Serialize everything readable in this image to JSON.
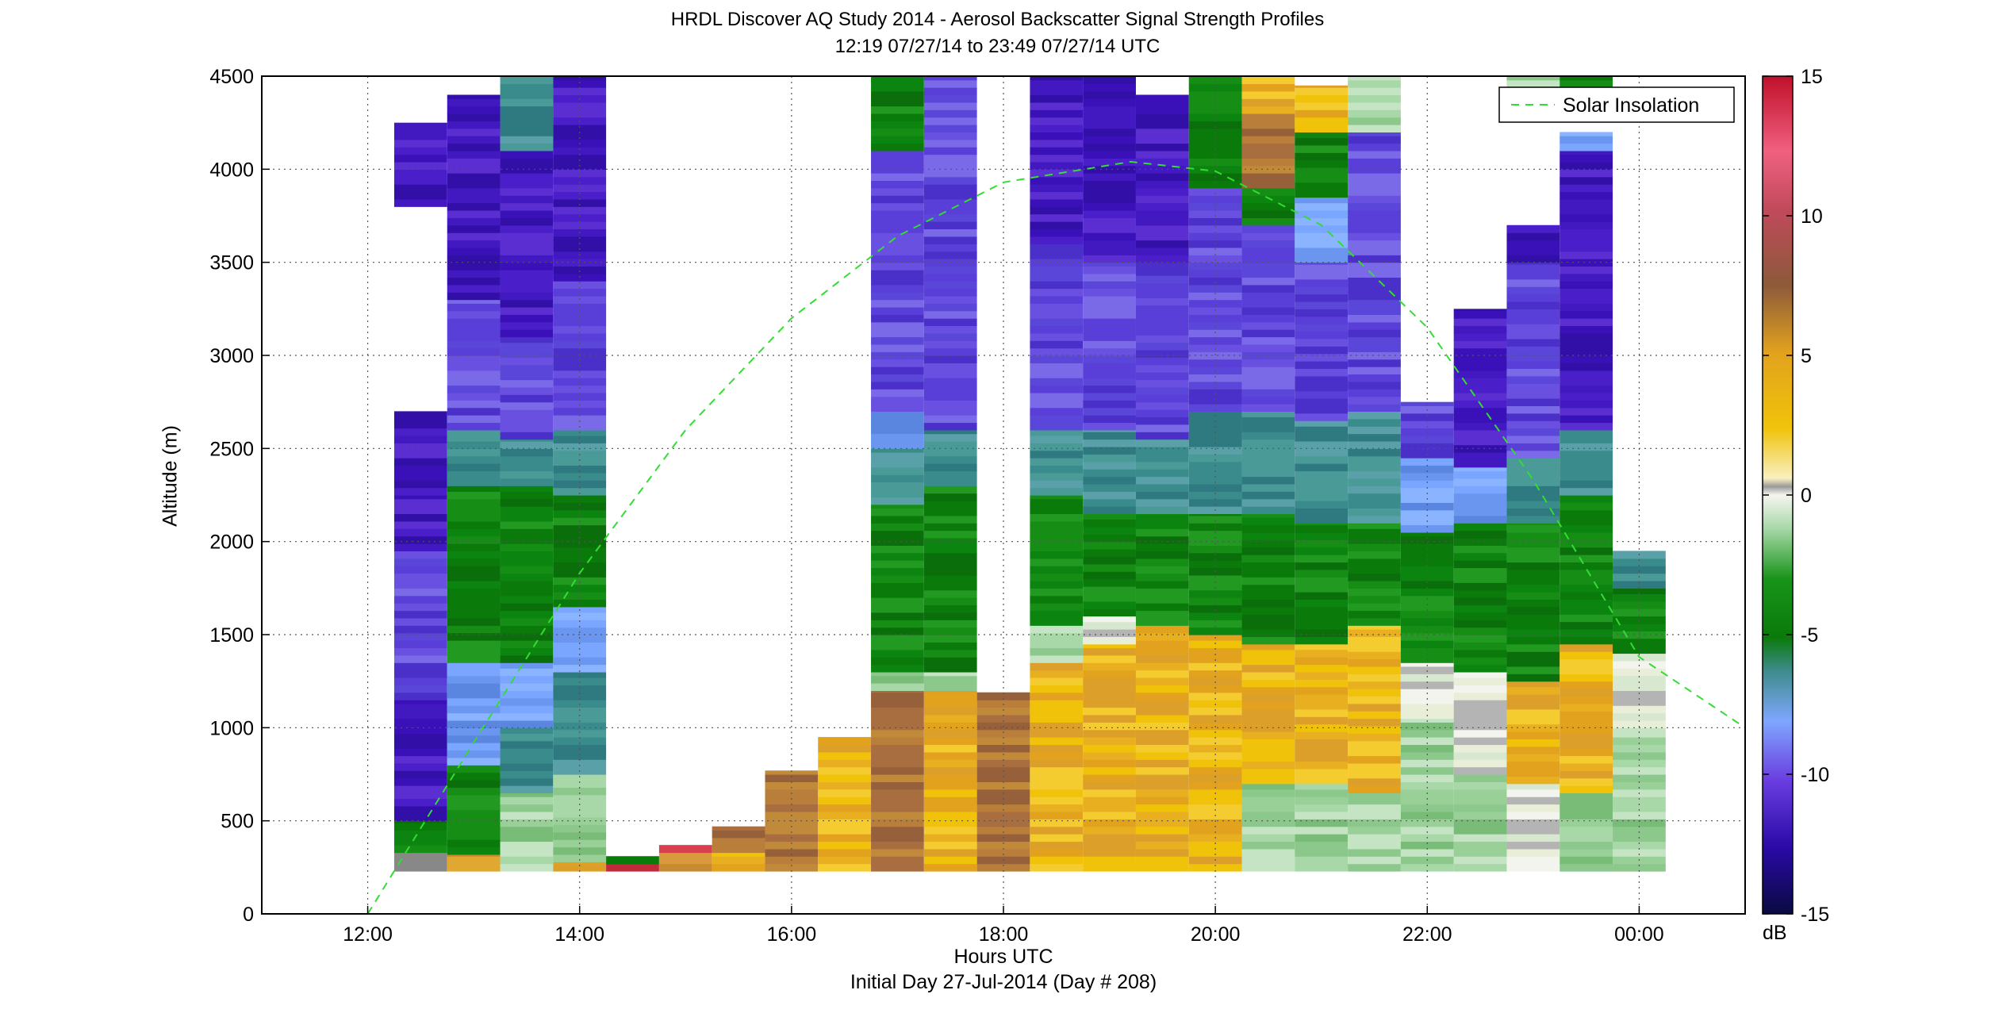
{
  "title": "HRDL Discover AQ Study 2014 - Aerosol Backscatter Signal Strength Profiles",
  "subtitle": "12:19 07/27/14 to 23:49 07/27/14  UTC",
  "chart_data": {
    "type": "heatmap",
    "title": "HRDL Discover AQ Study 2014 - Aerosol Backscatter Signal Strength Profiles",
    "subtitle": "12:19 07/27/14 to 23:49 07/27/14  UTC",
    "xlabel": "Hours UTC",
    "xlabel2": "Initial Day 27-Jul-2014 (Day # 208)",
    "ylabel": "Altitude (m)",
    "x_unit": "hours UTC",
    "xlim": [
      11.0,
      25.0
    ],
    "ylim": [
      0,
      4500
    ],
    "x_ticks": [
      12,
      14,
      16,
      18,
      20,
      22,
      24
    ],
    "x_tick_labels": [
      "12:00",
      "14:00",
      "16:00",
      "18:00",
      "20:00",
      "22:00",
      "00:00"
    ],
    "y_ticks": [
      0,
      500,
      1000,
      1500,
      2000,
      2500,
      3000,
      3500,
      4000,
      4500
    ],
    "y_tick_labels": [
      "0",
      "500",
      "1000",
      "1500",
      "2000",
      "2500",
      "3000",
      "3500",
      "4000",
      "4500"
    ],
    "grid": true,
    "colorbar": {
      "label": "dB",
      "range": [
        -15,
        15
      ],
      "ticks": [
        -15,
        -10,
        -5,
        0,
        5,
        10,
        15
      ],
      "tick_labels": [
        "-15",
        "-10",
        "-5",
        "0",
        "5",
        "10",
        "15"
      ]
    },
    "legend": {
      "position": "top-right",
      "entries": [
        "Solar Insolation"
      ]
    },
    "solar_insolation": {
      "name": "Solar Insolation",
      "color": "#33dd33",
      "style": "dashed",
      "x": [
        12.0,
        13.0,
        14.0,
        15.0,
        16.0,
        17.0,
        18.0,
        19.2,
        20.0,
        21.0,
        22.0,
        23.0,
        24.0,
        25.0
      ],
      "y": [
        0,
        920,
        1830,
        2600,
        3200,
        3640,
        3930,
        4040,
        3990,
        3700,
        3150,
        2330,
        1380,
        1000
      ]
    },
    "profiles": [
      {
        "t": 12.5,
        "top": 4250,
        "segments": [
          [
            230,
            330,
            "mix"
          ],
          [
            330,
            500,
            "green"
          ],
          [
            500,
            650,
            "violet"
          ],
          [
            650,
            1150,
            "violet"
          ],
          [
            1150,
            1950,
            "blueviolet"
          ],
          [
            1950,
            2250,
            "violet"
          ],
          [
            2250,
            2700,
            "violet"
          ],
          [
            3800,
            4250,
            "violet"
          ]
        ]
      },
      {
        "t": 13.0,
        "top": 4400,
        "segments": [
          [
            230,
            320,
            "tan"
          ],
          [
            320,
            800,
            "green"
          ],
          [
            800,
            1350,
            "blue"
          ],
          [
            1350,
            2300,
            "green"
          ],
          [
            2300,
            2600,
            "teal"
          ],
          [
            2600,
            3300,
            "blueviolet"
          ],
          [
            3300,
            4400,
            "violet"
          ]
        ]
      },
      {
        "t": 13.5,
        "top": 4500,
        "segments": [
          [
            230,
            650,
            "lightgreen"
          ],
          [
            650,
            1000,
            "teal"
          ],
          [
            1000,
            1350,
            "blue"
          ],
          [
            1350,
            2300,
            "green"
          ],
          [
            2300,
            2550,
            "teal"
          ],
          [
            2550,
            3100,
            "blueviolet"
          ],
          [
            3100,
            4100,
            "violet"
          ],
          [
            4100,
            4500,
            "teal"
          ]
        ]
      },
      {
        "t": 14.0,
        "top": 4500,
        "segments": [
          [
            230,
            280,
            "gold"
          ],
          [
            280,
            750,
            "lightgreen"
          ],
          [
            750,
            1300,
            "teal"
          ],
          [
            1300,
            1650,
            "blue"
          ],
          [
            1650,
            2250,
            "green"
          ],
          [
            2250,
            2600,
            "teal"
          ],
          [
            2600,
            3400,
            "blueviolet"
          ],
          [
            3400,
            4500,
            "violet"
          ]
        ]
      },
      {
        "t": 14.5,
        "top": 310,
        "segments": [
          [
            230,
            270,
            "red"
          ],
          [
            270,
            310,
            "green"
          ]
        ]
      },
      {
        "t": 15.0,
        "top": 370,
        "segments": [
          [
            230,
            330,
            "tan"
          ],
          [
            330,
            370,
            "red"
          ]
        ]
      },
      {
        "t": 15.5,
        "top": 470,
        "segments": [
          [
            230,
            330,
            "gold"
          ],
          [
            330,
            470,
            "brown"
          ]
        ]
      },
      {
        "t": 16.0,
        "top": 770,
        "segments": [
          [
            230,
            770,
            "brown"
          ]
        ]
      },
      {
        "t": 16.5,
        "top": 950,
        "segments": [
          [
            230,
            950,
            "gold"
          ]
        ]
      },
      {
        "t": 17.0,
        "top": 4500,
        "segments": [
          [
            230,
            1200,
            "brown"
          ],
          [
            1200,
            1300,
            "lightgreen"
          ],
          [
            1300,
            2200,
            "green"
          ],
          [
            2200,
            2500,
            "teal"
          ],
          [
            2500,
            2700,
            "blue"
          ],
          [
            2700,
            4100,
            "blueviolet"
          ],
          [
            4100,
            4500,
            "green"
          ]
        ]
      },
      {
        "t": 17.5,
        "top": 4500,
        "segments": [
          [
            230,
            1200,
            "gold"
          ],
          [
            1200,
            1300,
            "lightgreen"
          ],
          [
            1300,
            2300,
            "green"
          ],
          [
            2300,
            2600,
            "teal"
          ],
          [
            2600,
            4200,
            "blueviolet"
          ],
          [
            4200,
            4500,
            "blueviolet"
          ]
        ]
      },
      {
        "t": 18.0,
        "top": 1190,
        "segments": [
          [
            230,
            1190,
            "brown"
          ]
        ]
      },
      {
        "t": 18.5,
        "top": 4500,
        "segments": [
          [
            230,
            1350,
            "gold"
          ],
          [
            1350,
            1550,
            "lightgreen"
          ],
          [
            1550,
            2250,
            "green"
          ],
          [
            2250,
            2600,
            "teal"
          ],
          [
            2600,
            3600,
            "blueviolet"
          ],
          [
            3600,
            4500,
            "violet"
          ]
        ]
      },
      {
        "t": 19.0,
        "top": 4500,
        "segments": [
          [
            230,
            1450,
            "gold"
          ],
          [
            1450,
            1600,
            "white"
          ],
          [
            1600,
            2150,
            "green"
          ],
          [
            2150,
            2600,
            "teal"
          ],
          [
            2600,
            3500,
            "blueviolet"
          ],
          [
            3500,
            4500,
            "violet"
          ]
        ]
      },
      {
        "t": 19.5,
        "top": 4400,
        "segments": [
          [
            230,
            1550,
            "gold"
          ],
          [
            1550,
            2150,
            "green"
          ],
          [
            2150,
            2550,
            "teal"
          ],
          [
            2550,
            3500,
            "blueviolet"
          ],
          [
            3500,
            4400,
            "violet"
          ]
        ]
      },
      {
        "t": 20.0,
        "top": 4500,
        "segments": [
          [
            230,
            1500,
            "gold"
          ],
          [
            1500,
            2150,
            "green"
          ],
          [
            2150,
            2700,
            "teal"
          ],
          [
            2700,
            3900,
            "blueviolet"
          ],
          [
            3900,
            4500,
            "green"
          ]
        ]
      },
      {
        "t": 20.5,
        "top": 4500,
        "segments": [
          [
            230,
            700,
            "lightgreen"
          ],
          [
            700,
            1450,
            "gold"
          ],
          [
            1450,
            2150,
            "green"
          ],
          [
            2150,
            2700,
            "teal"
          ],
          [
            2700,
            3700,
            "blueviolet"
          ],
          [
            3700,
            3900,
            "green"
          ],
          [
            3900,
            4300,
            "brown"
          ],
          [
            4300,
            4500,
            "gold"
          ]
        ]
      },
      {
        "t": 21.0,
        "top": 4450,
        "segments": [
          [
            230,
            700,
            "lightgreen"
          ],
          [
            700,
            1450,
            "gold"
          ],
          [
            1450,
            2100,
            "green"
          ],
          [
            2100,
            2650,
            "teal"
          ],
          [
            2650,
            3500,
            "blueviolet"
          ],
          [
            3500,
            3850,
            "blue"
          ],
          [
            3850,
            4200,
            "green"
          ],
          [
            4200,
            4450,
            "gold"
          ]
        ]
      },
      {
        "t": 21.5,
        "top": 4500,
        "segments": [
          [
            230,
            650,
            "lightgreen"
          ],
          [
            650,
            1550,
            "gold"
          ],
          [
            1550,
            2100,
            "green"
          ],
          [
            2100,
            2700,
            "teal"
          ],
          [
            2700,
            4200,
            "blueviolet"
          ],
          [
            4200,
            4500,
            "lightgreen"
          ]
        ]
      },
      {
        "t": 22.0,
        "top": 2750,
        "segments": [
          [
            230,
            1050,
            "lightgreen"
          ],
          [
            1050,
            1350,
            "white"
          ],
          [
            1350,
            2050,
            "green"
          ],
          [
            2050,
            2450,
            "blue"
          ],
          [
            2450,
            2750,
            "blueviolet"
          ]
        ]
      },
      {
        "t": 22.5,
        "top": 3250,
        "segments": [
          [
            230,
            750,
            "lightgreen"
          ],
          [
            750,
            1300,
            "white"
          ],
          [
            1300,
            2100,
            "green"
          ],
          [
            2100,
            2400,
            "blue"
          ],
          [
            2400,
            3250,
            "violet"
          ]
        ]
      },
      {
        "t": 23.0,
        "top": 4500,
        "segments": [
          [
            230,
            700,
            "white"
          ],
          [
            700,
            1250,
            "gold"
          ],
          [
            1250,
            2100,
            "green"
          ],
          [
            2100,
            2450,
            "teal"
          ],
          [
            2450,
            3500,
            "blueviolet"
          ],
          [
            3500,
            3700,
            "violet"
          ],
          [
            4400,
            4500,
            "lightgreen"
          ]
        ]
      },
      {
        "t": 23.5,
        "top": 4500,
        "segments": [
          [
            230,
            650,
            "lightgreen"
          ],
          [
            650,
            1450,
            "gold"
          ],
          [
            1450,
            2250,
            "green"
          ],
          [
            2250,
            2600,
            "teal"
          ],
          [
            2600,
            4100,
            "violet"
          ],
          [
            4100,
            4200,
            "blue"
          ],
          [
            4400,
            4500,
            "green"
          ]
        ]
      },
      {
        "t": 24.0,
        "top": 1950,
        "segments": [
          [
            230,
            1000,
            "lightgreen"
          ],
          [
            1000,
            1400,
            "white"
          ],
          [
            1400,
            1750,
            "green"
          ],
          [
            1750,
            1950,
            "teal"
          ]
        ]
      }
    ]
  }
}
